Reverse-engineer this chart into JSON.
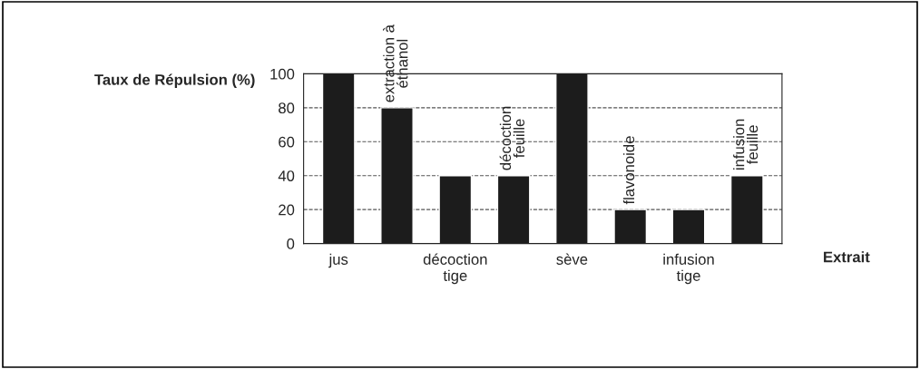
{
  "chart_data": {
    "type": "bar",
    "ylabel": "Taux de Répulsion (%)",
    "xlabel": "Extrait",
    "categories": [
      "jus",
      "extraction à éthanol",
      "décoction tige",
      "décoction feuille",
      "sève",
      "flavonoide",
      "infusion tige",
      "infusion feuille"
    ],
    "values": [
      100,
      80,
      40,
      40,
      100,
      20,
      20,
      40
    ],
    "color": "#1c1c1c",
    "ylim": [
      0,
      100
    ],
    "yticks": [
      0,
      20,
      40,
      60,
      80,
      100
    ],
    "grid": "y",
    "legend": false
  }
}
